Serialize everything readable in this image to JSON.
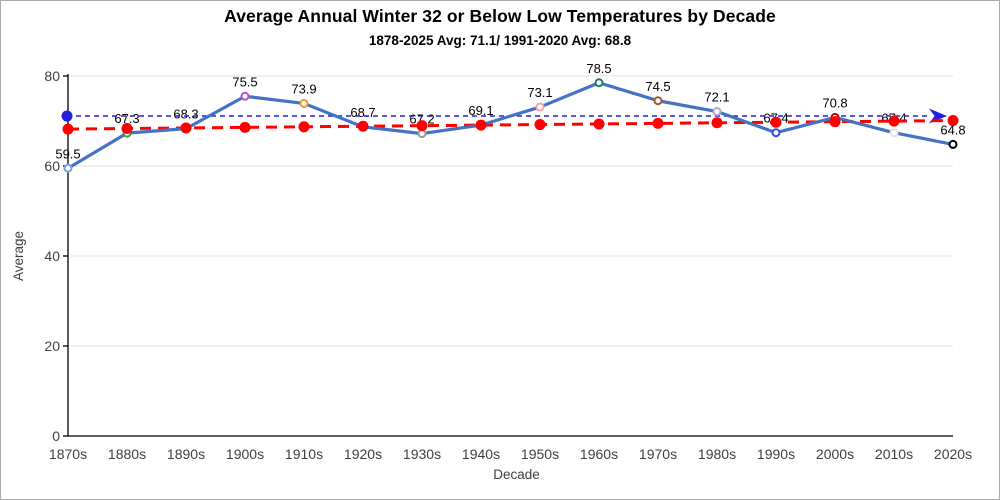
{
  "chart_data": {
    "type": "line",
    "title": "Average Annual Winter 32 or Below Low Temperatures by Decade",
    "subtitle": "1878-2025 Avg: 71.1/ 1991-2020 Avg: 68.8",
    "xlabel": "Decade",
    "ylabel": "Average",
    "ylim": [
      0,
      80
    ],
    "yticks": [
      0,
      20,
      40,
      60,
      80
    ],
    "grid": true,
    "legend": "none",
    "categories": [
      "1870s",
      "1880s",
      "1890s",
      "1900s",
      "1910s",
      "1920s",
      "1930s",
      "1940s",
      "1950s",
      "1960s",
      "1970s",
      "1980s",
      "1990s",
      "2000s",
      "2010s",
      "2020s"
    ],
    "series": [
      {
        "name": "decade-average",
        "type": "line",
        "color": "#4472C4",
        "line_width": 3.2,
        "marker": "open-circle",
        "marker_fill": "#FFFFFF",
        "values": [
          59.5,
          67.3,
          68.3,
          75.5,
          73.9,
          68.7,
          67.2,
          69.1,
          73.1,
          78.5,
          74.5,
          72.1,
          67.4,
          70.8,
          67.4,
          64.8
        ],
        "data_labels": [
          "59.5",
          "67.3",
          "68.3",
          "75.5",
          "73.9",
          "68.7",
          "67.2",
          "69.1",
          "73.1",
          "78.5",
          "74.5",
          "72.1",
          "67.4",
          "70.8",
          "67.4",
          "64.8"
        ],
        "point_colors": [
          "#7C9BE2",
          "#3FA14D",
          "#B02418",
          "#B254C8",
          "#E89A2E",
          "#2E8F86",
          "#9B9B9B",
          "#2E8F86",
          "#F2A2AC",
          "#1E7D6C",
          "#9E5B21",
          "#B3A6DB",
          "#2B4FDC",
          "#C00000",
          "#E3E3E3",
          "#000000"
        ]
      },
      {
        "name": "overall-average-reference-line",
        "type": "reference-line",
        "style": "dashed",
        "color": "#2222DD",
        "value": 71.1,
        "start_cap": "dot",
        "end_cap": "arrow"
      },
      {
        "name": "trend-line",
        "type": "line",
        "style": "dashed",
        "color": "#FF0000",
        "line_width": 3,
        "marker": "filled-dot",
        "values": [
          68.2,
          68.33,
          68.45,
          68.58,
          68.71,
          68.83,
          68.96,
          69.09,
          69.21,
          69.34,
          69.47,
          69.6,
          69.72,
          69.85,
          69.97,
          70.1
        ]
      }
    ],
    "colors": {
      "gridline": "#E3E3E3",
      "axis": "#000000",
      "tick_label": "#404040",
      "data_label": "#000000"
    }
  }
}
